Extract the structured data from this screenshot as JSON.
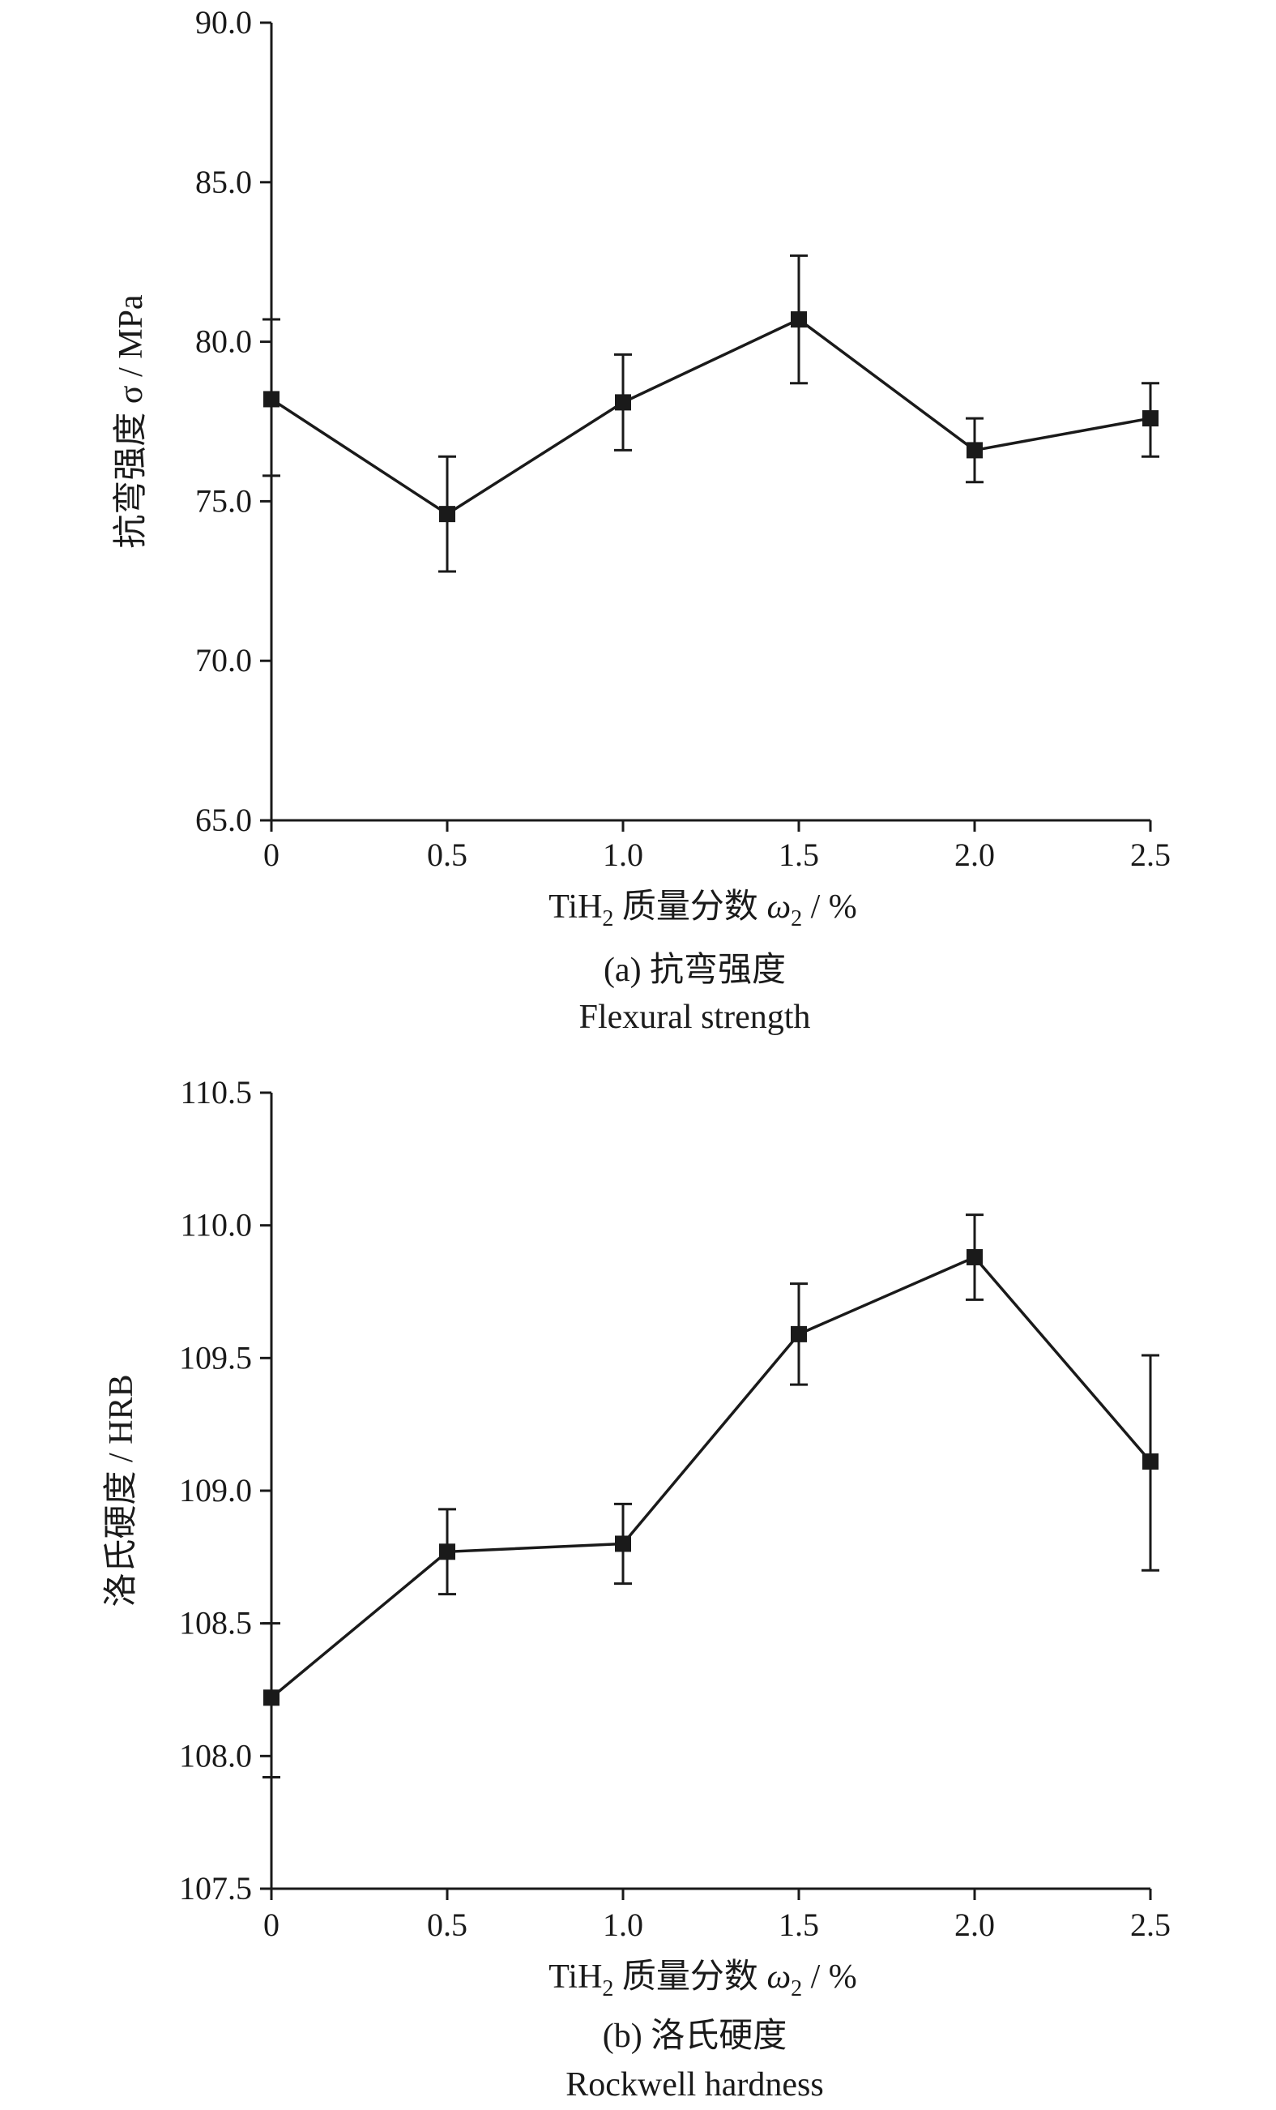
{
  "chart_data": [
    {
      "type": "line",
      "title": "(a) 抗弯强度",
      "subtitle": "Flexural strength",
      "xlabel_parts": {
        "pre": "TiH",
        "sub": "2",
        "mid": " 质量分数 ",
        "sym": "ω",
        "sym_sub": "2",
        "post": " / %"
      },
      "ylabel": "抗弯强度 σ / MPa",
      "x": [
        0,
        0.5,
        1.0,
        1.5,
        2.0,
        2.5
      ],
      "x_ticks": [
        "0",
        "0.5",
        "1.0",
        "1.5",
        "2.0",
        "2.5"
      ],
      "y_ticks": [
        "65.0",
        "70.0",
        "75.0",
        "80.0",
        "85.0",
        "90.0"
      ],
      "ylim": [
        65,
        90
      ],
      "xlim": [
        0,
        2.5
      ],
      "series": [
        {
          "values": [
            78.2,
            74.6,
            78.1,
            80.7,
            76.6,
            77.6
          ],
          "err_upper": [
            80.7,
            76.4,
            79.6,
            82.7,
            77.6,
            78.7
          ],
          "err_lower": [
            75.8,
            72.8,
            76.6,
            78.7,
            75.6,
            76.4
          ]
        }
      ],
      "grid": false
    },
    {
      "type": "line",
      "title": "(b) 洛氏硬度",
      "subtitle": "Rockwell hardness",
      "xlabel_parts": {
        "pre": "TiH",
        "sub": "2",
        "mid": " 质量分数 ",
        "sym": "ω",
        "sym_sub": "2",
        "post": " / %"
      },
      "ylabel": "洛氏硬度 / HRB",
      "x": [
        0,
        0.5,
        1.0,
        1.5,
        2.0,
        2.5
      ],
      "x_ticks": [
        "0",
        "0.5",
        "1.0",
        "1.5",
        "2.0",
        "2.5"
      ],
      "y_ticks": [
        "107.5",
        "108.0",
        "108.5",
        "109.0",
        "109.5",
        "110.0",
        "110.5"
      ],
      "ylim": [
        107.5,
        110.5
      ],
      "xlim": [
        0,
        2.5
      ],
      "series": [
        {
          "values": [
            108.22,
            108.77,
            108.8,
            109.59,
            109.88,
            109.11
          ],
          "err_upper": [
            108.5,
            108.93,
            108.95,
            109.78,
            110.04,
            109.51
          ],
          "err_lower": [
            107.92,
            108.61,
            108.65,
            109.4,
            109.72,
            108.7
          ]
        }
      ],
      "grid": false
    }
  ]
}
